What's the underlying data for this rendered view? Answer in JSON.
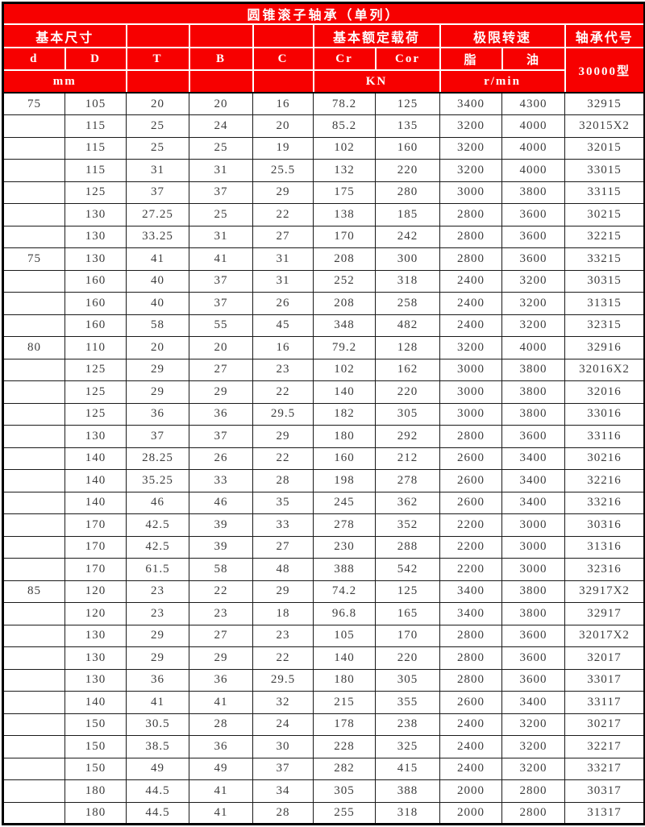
{
  "title": "圆锥滚子轴承（单列）",
  "header": {
    "group_basic_dims": "基本尺寸",
    "group_load": "基本额定载荷",
    "group_speed": "极限转速",
    "group_code": "轴承代号",
    "col_d": "d",
    "col_D": "D",
    "col_T": "T",
    "col_B": "B",
    "col_C": "C",
    "col_Cr": "Cr",
    "col_Cor": "Cor",
    "col_grease": "脂",
    "col_oil": "油",
    "code_type": "30000型",
    "unit_mm": "mm",
    "unit_kn": "KN",
    "unit_rmin": "r/min"
  },
  "colors": {
    "header_bg": "#f70000",
    "header_text": "#ffffff",
    "body_text": "#3d3d3d",
    "grid": "#1a1a1a"
  },
  "columns_order": [
    "d",
    "D",
    "T",
    "B",
    "C",
    "Cr",
    "Cor",
    "grease",
    "oil",
    "code"
  ],
  "rows": [
    [
      "75",
      "105",
      "20",
      "20",
      "16",
      "78.2",
      "125",
      "3400",
      "4300",
      "32915"
    ],
    [
      "",
      "115",
      "25",
      "24",
      "20",
      "85.2",
      "135",
      "3200",
      "4000",
      "32015X2"
    ],
    [
      "",
      "115",
      "25",
      "25",
      "19",
      "102",
      "160",
      "3200",
      "4000",
      "32015"
    ],
    [
      "",
      "115",
      "31",
      "31",
      "25.5",
      "132",
      "220",
      "3200",
      "4000",
      "33015"
    ],
    [
      "",
      "125",
      "37",
      "37",
      "29",
      "175",
      "280",
      "3000",
      "3800",
      "33115"
    ],
    [
      "",
      "130",
      "27.25",
      "25",
      "22",
      "138",
      "185",
      "2800",
      "3600",
      "30215"
    ],
    [
      "",
      "130",
      "33.25",
      "31",
      "27",
      "170",
      "242",
      "2800",
      "3600",
      "32215"
    ],
    [
      "75",
      "130",
      "41",
      "41",
      "31",
      "208",
      "300",
      "2800",
      "3600",
      "33215"
    ],
    [
      "",
      "160",
      "40",
      "37",
      "31",
      "252",
      "318",
      "2400",
      "3200",
      "30315"
    ],
    [
      "",
      "160",
      "40",
      "37",
      "26",
      "208",
      "258",
      "2400",
      "3200",
      "31315"
    ],
    [
      "",
      "160",
      "58",
      "55",
      "45",
      "348",
      "482",
      "2400",
      "3200",
      "32315"
    ],
    [
      "80",
      "110",
      "20",
      "20",
      "16",
      "79.2",
      "128",
      "3200",
      "4000",
      "32916"
    ],
    [
      "",
      "125",
      "29",
      "27",
      "23",
      "102",
      "162",
      "3000",
      "3800",
      "32016X2"
    ],
    [
      "",
      "125",
      "29",
      "29",
      "22",
      "140",
      "220",
      "3000",
      "3800",
      "32016"
    ],
    [
      "",
      "125",
      "36",
      "36",
      "29.5",
      "182",
      "305",
      "3000",
      "3800",
      "33016"
    ],
    [
      "",
      "130",
      "37",
      "37",
      "29",
      "180",
      "292",
      "2800",
      "3600",
      "33116"
    ],
    [
      "",
      "140",
      "28.25",
      "26",
      "22",
      "160",
      "212",
      "2600",
      "3400",
      "30216"
    ],
    [
      "",
      "140",
      "35.25",
      "33",
      "28",
      "198",
      "278",
      "2600",
      "3400",
      "32216"
    ],
    [
      "",
      "140",
      "46",
      "46",
      "35",
      "245",
      "362",
      "2600",
      "3400",
      "33216"
    ],
    [
      "",
      "170",
      "42.5",
      "39",
      "33",
      "278",
      "352",
      "2200",
      "3000",
      "30316"
    ],
    [
      "",
      "170",
      "42.5",
      "39",
      "27",
      "230",
      "288",
      "2200",
      "3000",
      "31316"
    ],
    [
      "",
      "170",
      "61.5",
      "58",
      "48",
      "388",
      "542",
      "2200",
      "3000",
      "32316"
    ],
    [
      "85",
      "120",
      "23",
      "22",
      "29",
      "74.2",
      "125",
      "3400",
      "3800",
      "32917X2"
    ],
    [
      "",
      "120",
      "23",
      "23",
      "18",
      "96.8",
      "165",
      "3400",
      "3800",
      "32917"
    ],
    [
      "",
      "130",
      "29",
      "27",
      "23",
      "105",
      "170",
      "2800",
      "3600",
      "32017X2"
    ],
    [
      "",
      "130",
      "29",
      "29",
      "22",
      "140",
      "220",
      "2800",
      "3600",
      "32017"
    ],
    [
      "",
      "130",
      "36",
      "36",
      "29.5",
      "180",
      "305",
      "2800",
      "3600",
      "33017"
    ],
    [
      "",
      "140",
      "41",
      "41",
      "32",
      "215",
      "355",
      "2600",
      "3400",
      "33117"
    ],
    [
      "",
      "150",
      "30.5",
      "28",
      "24",
      "178",
      "238",
      "2400",
      "3200",
      "30217"
    ],
    [
      "",
      "150",
      "38.5",
      "36",
      "30",
      "228",
      "325",
      "2400",
      "3200",
      "32217"
    ],
    [
      "",
      "150",
      "49",
      "49",
      "37",
      "282",
      "415",
      "2400",
      "3200",
      "33217"
    ],
    [
      "",
      "180",
      "44.5",
      "41",
      "34",
      "305",
      "388",
      "2000",
      "2800",
      "30317"
    ],
    [
      "",
      "180",
      "44.5",
      "41",
      "28",
      "255",
      "318",
      "2000",
      "2800",
      "31317"
    ]
  ]
}
